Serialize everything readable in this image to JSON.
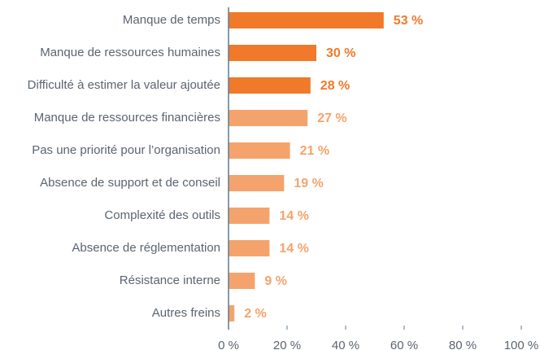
{
  "chart_data": {
    "type": "bar",
    "orientation": "horizontal",
    "categories": [
      "Manque de temps",
      "Manque de ressources humaines",
      "Difficulté à estimer la valeur ajoutée",
      "Manque de ressources financières",
      "Pas une priorité pour l’organisation",
      "Absence de support et de conseil",
      "Complexité des outils",
      "Absence de réglementation",
      "Résistance interne",
      "Autres freins"
    ],
    "values": [
      53,
      30,
      28,
      27,
      21,
      19,
      14,
      14,
      9,
      2
    ],
    "value_labels": [
      "53 %",
      "30 %",
      "28 %",
      "27 %",
      "21 %",
      "19 %",
      "14 %",
      "14 %",
      "9 %",
      "2 %"
    ],
    "colors": [
      "#f07a2a",
      "#f07a2a",
      "#f07a2a",
      "#f5a36c",
      "#f5a36c",
      "#f5a36c",
      "#f5a36c",
      "#f5a36c",
      "#f5a36c",
      "#f5a36c"
    ],
    "xlim": [
      0,
      100
    ],
    "xticks": [
      {
        "value": 0,
        "label": "0 %"
      },
      {
        "value": 20,
        "label": "20 %"
      },
      {
        "value": 40,
        "label": "40 %"
      },
      {
        "value": 60,
        "label": "60 %"
      },
      {
        "value": 80,
        "label": "80 %"
      },
      {
        "value": 100,
        "label": "100 %"
      }
    ],
    "grid": false
  }
}
